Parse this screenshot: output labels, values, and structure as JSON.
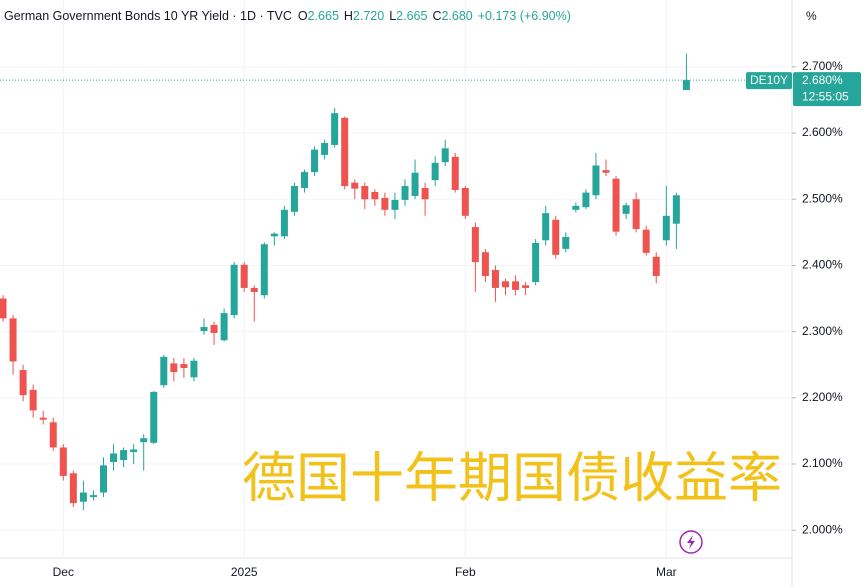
{
  "chart_data": {
    "type": "candlestick",
    "header": {
      "title": "German Government Bonds 10 YR Yield · 1D · TVC",
      "fields": [
        {
          "key": "O",
          "value": "2.665"
        },
        {
          "key": "H",
          "value": "2.720"
        },
        {
          "key": "L",
          "value": "2.665"
        },
        {
          "key": "C",
          "value": "2.680"
        }
      ],
      "change": "+0.173 (+6.90%)"
    },
    "axis_unit": "%",
    "overlay_text": "德国十年期国债收益率",
    "up_color": "#26a69a",
    "down_color": "#ef5350",
    "categories": [
      null,
      null,
      null,
      null,
      null,
      null,
      "Dec",
      null,
      null,
      null,
      null,
      null,
      null,
      null,
      null,
      null,
      null,
      null,
      null,
      null,
      null,
      null,
      null,
      null,
      "2025",
      null,
      null,
      null,
      null,
      null,
      null,
      null,
      null,
      null,
      null,
      null,
      null,
      null,
      null,
      null,
      null,
      null,
      null,
      null,
      null,
      null,
      "Feb",
      null,
      null,
      null,
      null,
      null,
      null,
      null,
      null,
      null,
      null,
      null,
      null,
      null,
      null,
      null,
      null,
      null,
      null,
      null,
      "Mar",
      null,
      null
    ],
    "open": [
      2.35,
      2.32,
      2.242,
      2.212,
      2.17,
      2.163,
      2.125,
      2.086,
      2.043,
      2.05,
      2.057,
      2.103,
      2.106,
      2.118,
      2.133,
      2.132,
      2.219,
      2.252,
      2.251,
      2.231,
      2.301,
      2.31,
      2.287,
      2.325,
      2.401,
      2.366,
      2.355,
      2.444,
      2.444,
      2.481,
      2.517,
      2.541,
      2.567,
      2.582,
      2.623,
      2.525,
      2.52,
      2.511,
      2.502,
      2.484,
      2.499,
      2.505,
      2.517,
      2.529,
      2.556,
      2.564,
      2.517,
      2.458,
      2.42,
      2.393,
      2.376,
      2.376,
      2.37,
      2.375,
      2.438,
      2.469,
      2.425,
      2.484,
      2.488,
      2.506,
      2.544,
      2.531,
      2.478,
      2.5,
      2.454,
      2.413,
      2.438,
      2.463,
      2.665
    ],
    "high": [
      2.355,
      2.325,
      2.25,
      2.22,
      2.18,
      2.17,
      2.13,
      2.09,
      2.075,
      2.06,
      2.11,
      2.13,
      2.125,
      2.13,
      2.145,
      2.21,
      2.265,
      2.26,
      2.26,
      2.26,
      2.32,
      2.315,
      2.335,
      2.405,
      2.405,
      2.37,
      2.435,
      2.45,
      2.49,
      2.525,
      2.545,
      2.58,
      2.59,
      2.638,
      2.625,
      2.53,
      2.525,
      2.515,
      2.51,
      2.51,
      2.53,
      2.56,
      2.525,
      2.565,
      2.59,
      2.57,
      2.52,
      2.465,
      2.425,
      2.4,
      2.38,
      2.385,
      2.375,
      2.44,
      2.49,
      2.475,
      2.45,
      2.495,
      2.515,
      2.57,
      2.56,
      2.535,
      2.495,
      2.51,
      2.46,
      2.42,
      2.52,
      2.51,
      2.72
    ],
    "low": [
      2.315,
      2.235,
      2.195,
      2.17,
      2.16,
      2.12,
      2.075,
      2.035,
      2.03,
      2.045,
      2.05,
      2.09,
      2.095,
      2.1,
      2.09,
      2.13,
      2.215,
      2.225,
      2.23,
      2.225,
      2.295,
      2.28,
      2.285,
      2.32,
      2.36,
      2.315,
      2.35,
      2.43,
      2.44,
      2.475,
      2.51,
      2.535,
      2.56,
      2.578,
      2.515,
      2.5,
      2.485,
      2.49,
      2.475,
      2.47,
      2.49,
      2.5,
      2.475,
      2.52,
      2.55,
      2.51,
      2.47,
      2.36,
      2.375,
      2.345,
      2.355,
      2.355,
      2.355,
      2.37,
      2.43,
      2.41,
      2.42,
      2.48,
      2.485,
      2.5,
      2.535,
      2.445,
      2.47,
      2.45,
      2.415,
      2.373,
      2.43,
      2.425,
      2.665
    ],
    "close": [
      2.32,
      2.255,
      2.204,
      2.181,
      2.167,
      2.125,
      2.082,
      2.041,
      2.057,
      2.053,
      2.098,
      2.116,
      2.121,
      2.122,
      2.139,
      2.209,
      2.262,
      2.239,
      2.245,
      2.256,
      2.307,
      2.298,
      2.328,
      2.401,
      2.366,
      2.36,
      2.432,
      2.448,
      2.484,
      2.52,
      2.541,
      2.575,
      2.585,
      2.63,
      2.52,
      2.516,
      2.5,
      2.5,
      2.484,
      2.499,
      2.52,
      2.54,
      2.5,
      2.555,
      2.577,
      2.514,
      2.475,
      2.405,
      2.384,
      2.366,
      2.367,
      2.363,
      2.366,
      2.434,
      2.479,
      2.416,
      2.443,
      2.49,
      2.51,
      2.551,
      2.54,
      2.451,
      2.491,
      2.455,
      2.419,
      2.384,
      2.475,
      2.506,
      2.68
    ],
    "ylim": [
      1.958,
      2.801
    ],
    "yticks": [
      {
        "value": 2.0,
        "label": "2.000%"
      },
      {
        "value": 2.1,
        "label": "2.100%"
      },
      {
        "value": 2.2,
        "label": "2.200%"
      },
      {
        "value": 2.3,
        "label": "2.300%"
      },
      {
        "value": 2.4,
        "label": "2.400%"
      },
      {
        "value": 2.5,
        "label": "2.500%"
      },
      {
        "value": 2.6,
        "label": "2.600%"
      },
      {
        "value": 2.7,
        "label": "2.700%"
      }
    ],
    "grid": true,
    "last_price": {
      "symbol": "DE10Y",
      "value": 2.68,
      "label": "2.680%",
      "time": "12:55:05"
    }
  }
}
